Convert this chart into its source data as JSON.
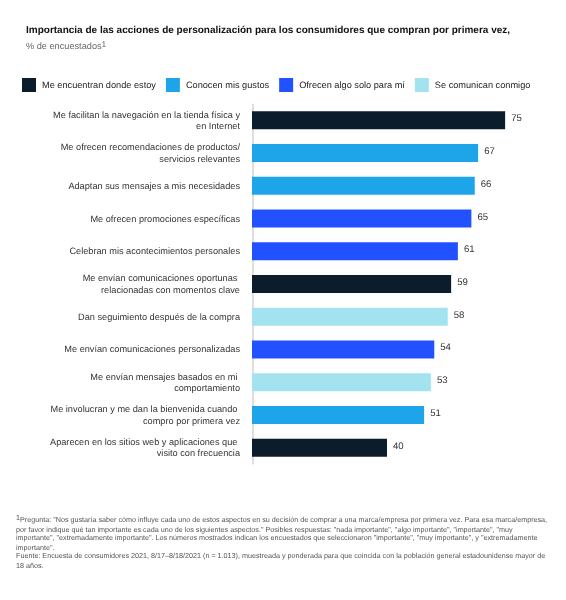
{
  "chart_data": {
    "type": "bar",
    "orientation": "horizontal",
    "stacked": true,
    "data_labels": true,
    "grid": false,
    "legend": "top left",
    "title": "Importancia de las acciones de personalización para los consumidores que compran por primera vez,",
    "subtitle": "% de encuestados$^{1}$",
    "categories": [
      "Me facilitan la navegación en la tienda física y en Internet",
      "Me ofrecen recomendaciones de productos/servicios relevantes",
      "Adaptan sus mensajes a mis necesidades",
      "Me ofrecen promociones específicas",
      "Celebran mis acontecimientos personales",
      "Me envían comunicaciones oportunas relacionadas con momentos clave",
      "Dan seguimiento después de la compra",
      "Me envían comunicaciones personalizadas",
      "Me envían mensajes basados en mi comportamiento",
      "Me involucran y me dan la bienvenida cuando compro por primera vez",
      "Aparecen en los sitios web y aplicaciones que visito con frecuencia"
    ],
    "series": [
      {
        "name": "Me encuentran donde estoy",
        "color": "#0b1d2c",
        "values": [
          75,
          null,
          null,
          null,
          null,
          59,
          null,
          null,
          null,
          null,
          40
        ]
      },
      {
        "name": "Conocen mis gustos",
        "color": "#1ea4e9",
        "values": [
          null,
          67,
          66,
          null,
          null,
          null,
          null,
          null,
          null,
          51,
          null
        ]
      },
      {
        "name": "Ofrecen algo solo para mí",
        "color": "#2251ff",
        "values": [
          null,
          null,
          null,
          65,
          61,
          null,
          null,
          54,
          null,
          null,
          null
        ]
      },
      {
        "name": "Se comunican conmigo",
        "color": "#a3e3f0",
        "values": [
          null,
          null,
          null,
          null,
          null,
          null,
          58,
          null,
          53,
          null,
          null
        ]
      }
    ],
    "annotations": [
      "$^{1}$Pregunta: \"Nos gustaría saber cómo influye cada uno de estos aspectos en su decisión de comprar a una marca/empresa por primera vez. Para esa marca/empresa, por favor indique qué tan importante es cada uno de los siguientes aspectos.\" Posibles respuestas: \"nada importante\", \"algo importante\", \"importante\", \"muy importante\", \"extremadamente importante\". Los números mostrados indican los encuestados que seleccionaron \"importante\", \"muy importante\", y \"extremadamente importante\".",
      "Fuente: Encuesta de consumidores 2021, 8/17–8/18/2021 (n = 1.013), muestreada y ponderada para que coincida con la población general estadounidense mayor de 18 años."
    ]
  }
}
